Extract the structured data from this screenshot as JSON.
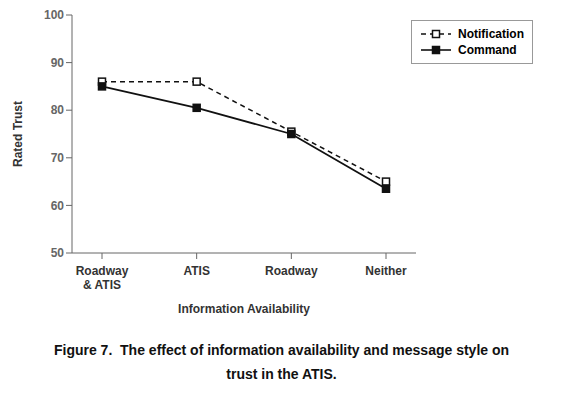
{
  "chart_data": {
    "type": "line",
    "categories": [
      "Roadway\n& ATIS",
      "ATIS",
      "Roadway",
      "Neither"
    ],
    "series": [
      {
        "name": "Notification",
        "color": "#111111",
        "line_style": "dashed",
        "marker": "open_square",
        "values": [
          86.0,
          86.0,
          75.5,
          65.0
        ]
      },
      {
        "name": "Command",
        "color": "#111111",
        "line_style": "solid",
        "marker": "square",
        "values": [
          85.0,
          80.5,
          75.0,
          63.5
        ]
      }
    ],
    "x_label": "Information Availability",
    "y_label": "Rated Trust",
    "ylim": [
      50,
      100
    ],
    "yticks": [
      50,
      60,
      70,
      80,
      90,
      100
    ],
    "grid": false,
    "legend": "upper right",
    "annotations": [
      "Figure 7.  The effect of information availability and message style on",
      "trust in the ATIS."
    ]
  }
}
